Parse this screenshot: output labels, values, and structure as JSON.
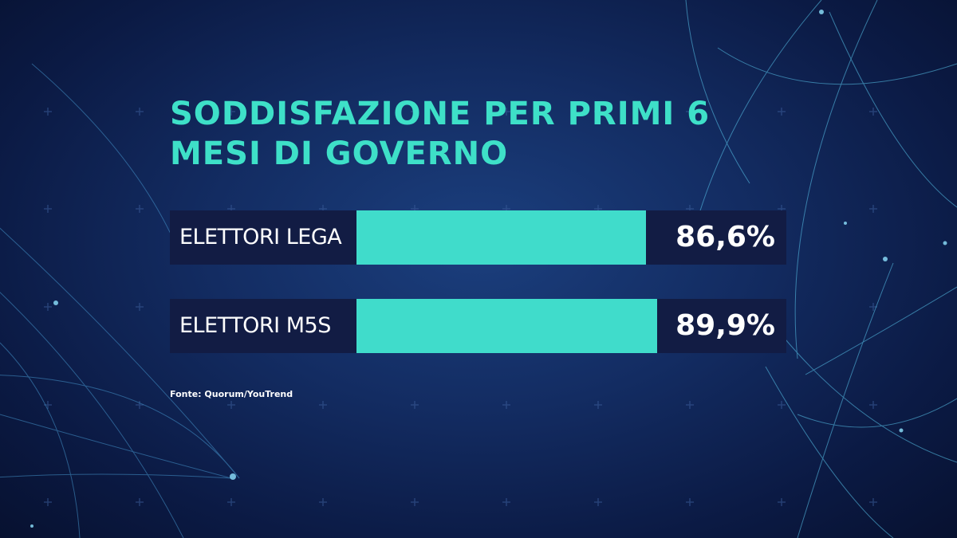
{
  "chart_data": {
    "type": "bar",
    "orientation": "horizontal",
    "title": "SODDISFAZIONE PER PRIMI 6 MESI DI GOVERNO",
    "categories": [
      "ELETTORI LEGA",
      "ELETTORI M5S"
    ],
    "values": [
      86.6,
      89.9
    ],
    "value_labels": [
      "86,6%",
      "89,9%"
    ],
    "unit": "%",
    "bar_color": "#40dccb",
    "grid": false,
    "legend": "none"
  },
  "source": "Fonte: Quorum/YouTrend",
  "colors": {
    "title": "#3ee0c8",
    "bar": "#40dccb",
    "row_background": "#121c44",
    "background": "#132c62"
  }
}
